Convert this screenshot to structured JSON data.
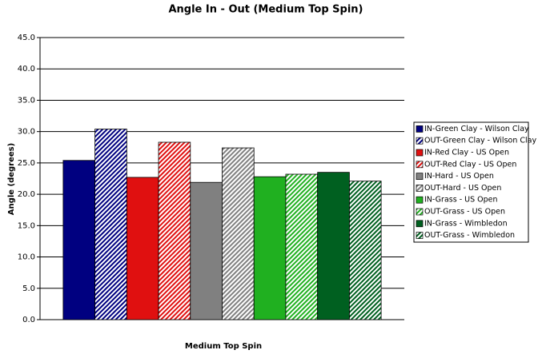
{
  "chart_data": {
    "type": "bar",
    "title": "Angle In - Out (Medium Top Spin)",
    "x_label": "Medium Top Spin",
    "y_label": "Angle (degrees)",
    "categories": [
      null
    ],
    "ylim": [
      0,
      45
    ],
    "yticks": [
      {
        "value": 0,
        "label": "0.0"
      },
      {
        "value": 5,
        "label": "5.0"
      },
      {
        "value": 10,
        "label": "10.0"
      },
      {
        "value": 15,
        "label": "15.0"
      },
      {
        "value": 20,
        "label": "20.0"
      },
      {
        "value": 25,
        "label": "25.0"
      },
      {
        "value": 30,
        "label": "30.0"
      },
      {
        "value": 35,
        "label": "35.0"
      },
      {
        "value": 40,
        "label": "40.0"
      },
      {
        "value": 45,
        "label": "45.0"
      }
    ],
    "grid": true,
    "legend": "right",
    "series": [
      {
        "name": "IN-Green Clay - Wilson Clay",
        "color": "#000080",
        "hatched": false,
        "values": [
          25.4
        ]
      },
      {
        "name": "OUT-Green Clay - Wilson Clay",
        "color": "#000080",
        "hatched": true,
        "values": [
          30.4
        ]
      },
      {
        "name": "IN-Red Clay - US Open",
        "color": "#e01010",
        "hatched": false,
        "values": [
          22.7
        ]
      },
      {
        "name": "OUT-Red Clay - US Open",
        "color": "#e01010",
        "hatched": true,
        "values": [
          28.3
        ]
      },
      {
        "name": "IN-Hard - US Open",
        "color": "#808080",
        "hatched": false,
        "values": [
          21.9
        ]
      },
      {
        "name": "OUT-Hard - US Open",
        "color": "#808080",
        "hatched": true,
        "values": [
          27.4
        ]
      },
      {
        "name": "IN-Grass - US Open",
        "color": "#20b020",
        "hatched": false,
        "values": [
          22.8
        ]
      },
      {
        "name": "OUT-Grass - US Open",
        "color": "#20b020",
        "hatched": true,
        "values": [
          23.2
        ]
      },
      {
        "name": "IN-Grass - Wimbledon",
        "color": "#006020",
        "hatched": false,
        "values": [
          23.5
        ]
      },
      {
        "name": "OUT-Grass - Wimbledon",
        "color": "#006020",
        "hatched": true,
        "values": [
          22.1
        ]
      }
    ]
  }
}
